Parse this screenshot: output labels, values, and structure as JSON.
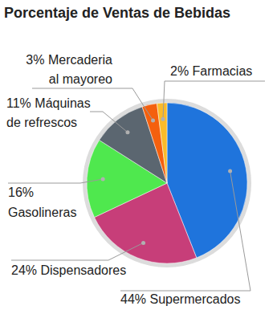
{
  "chart_data": {
    "type": "pie",
    "title": "Porcentaje de Ventas de Bebidas",
    "categories": [
      "Supermercados",
      "Dispensadores",
      "Gasolineras",
      "Máquinas de refrescos",
      "Mercaderia al mayoreo",
      "Farmacias"
    ],
    "values": [
      44,
      24,
      16,
      11,
      3,
      2
    ],
    "value_labels": [
      "44%",
      "24%",
      "16%",
      "11%",
      "3%",
      "2%"
    ],
    "colors": [
      "#1f74dc",
      "#c73e79",
      "#4fe84e",
      "#5b6670",
      "#f4600e",
      "#fbbb2a"
    ],
    "data_labels": true
  }
}
